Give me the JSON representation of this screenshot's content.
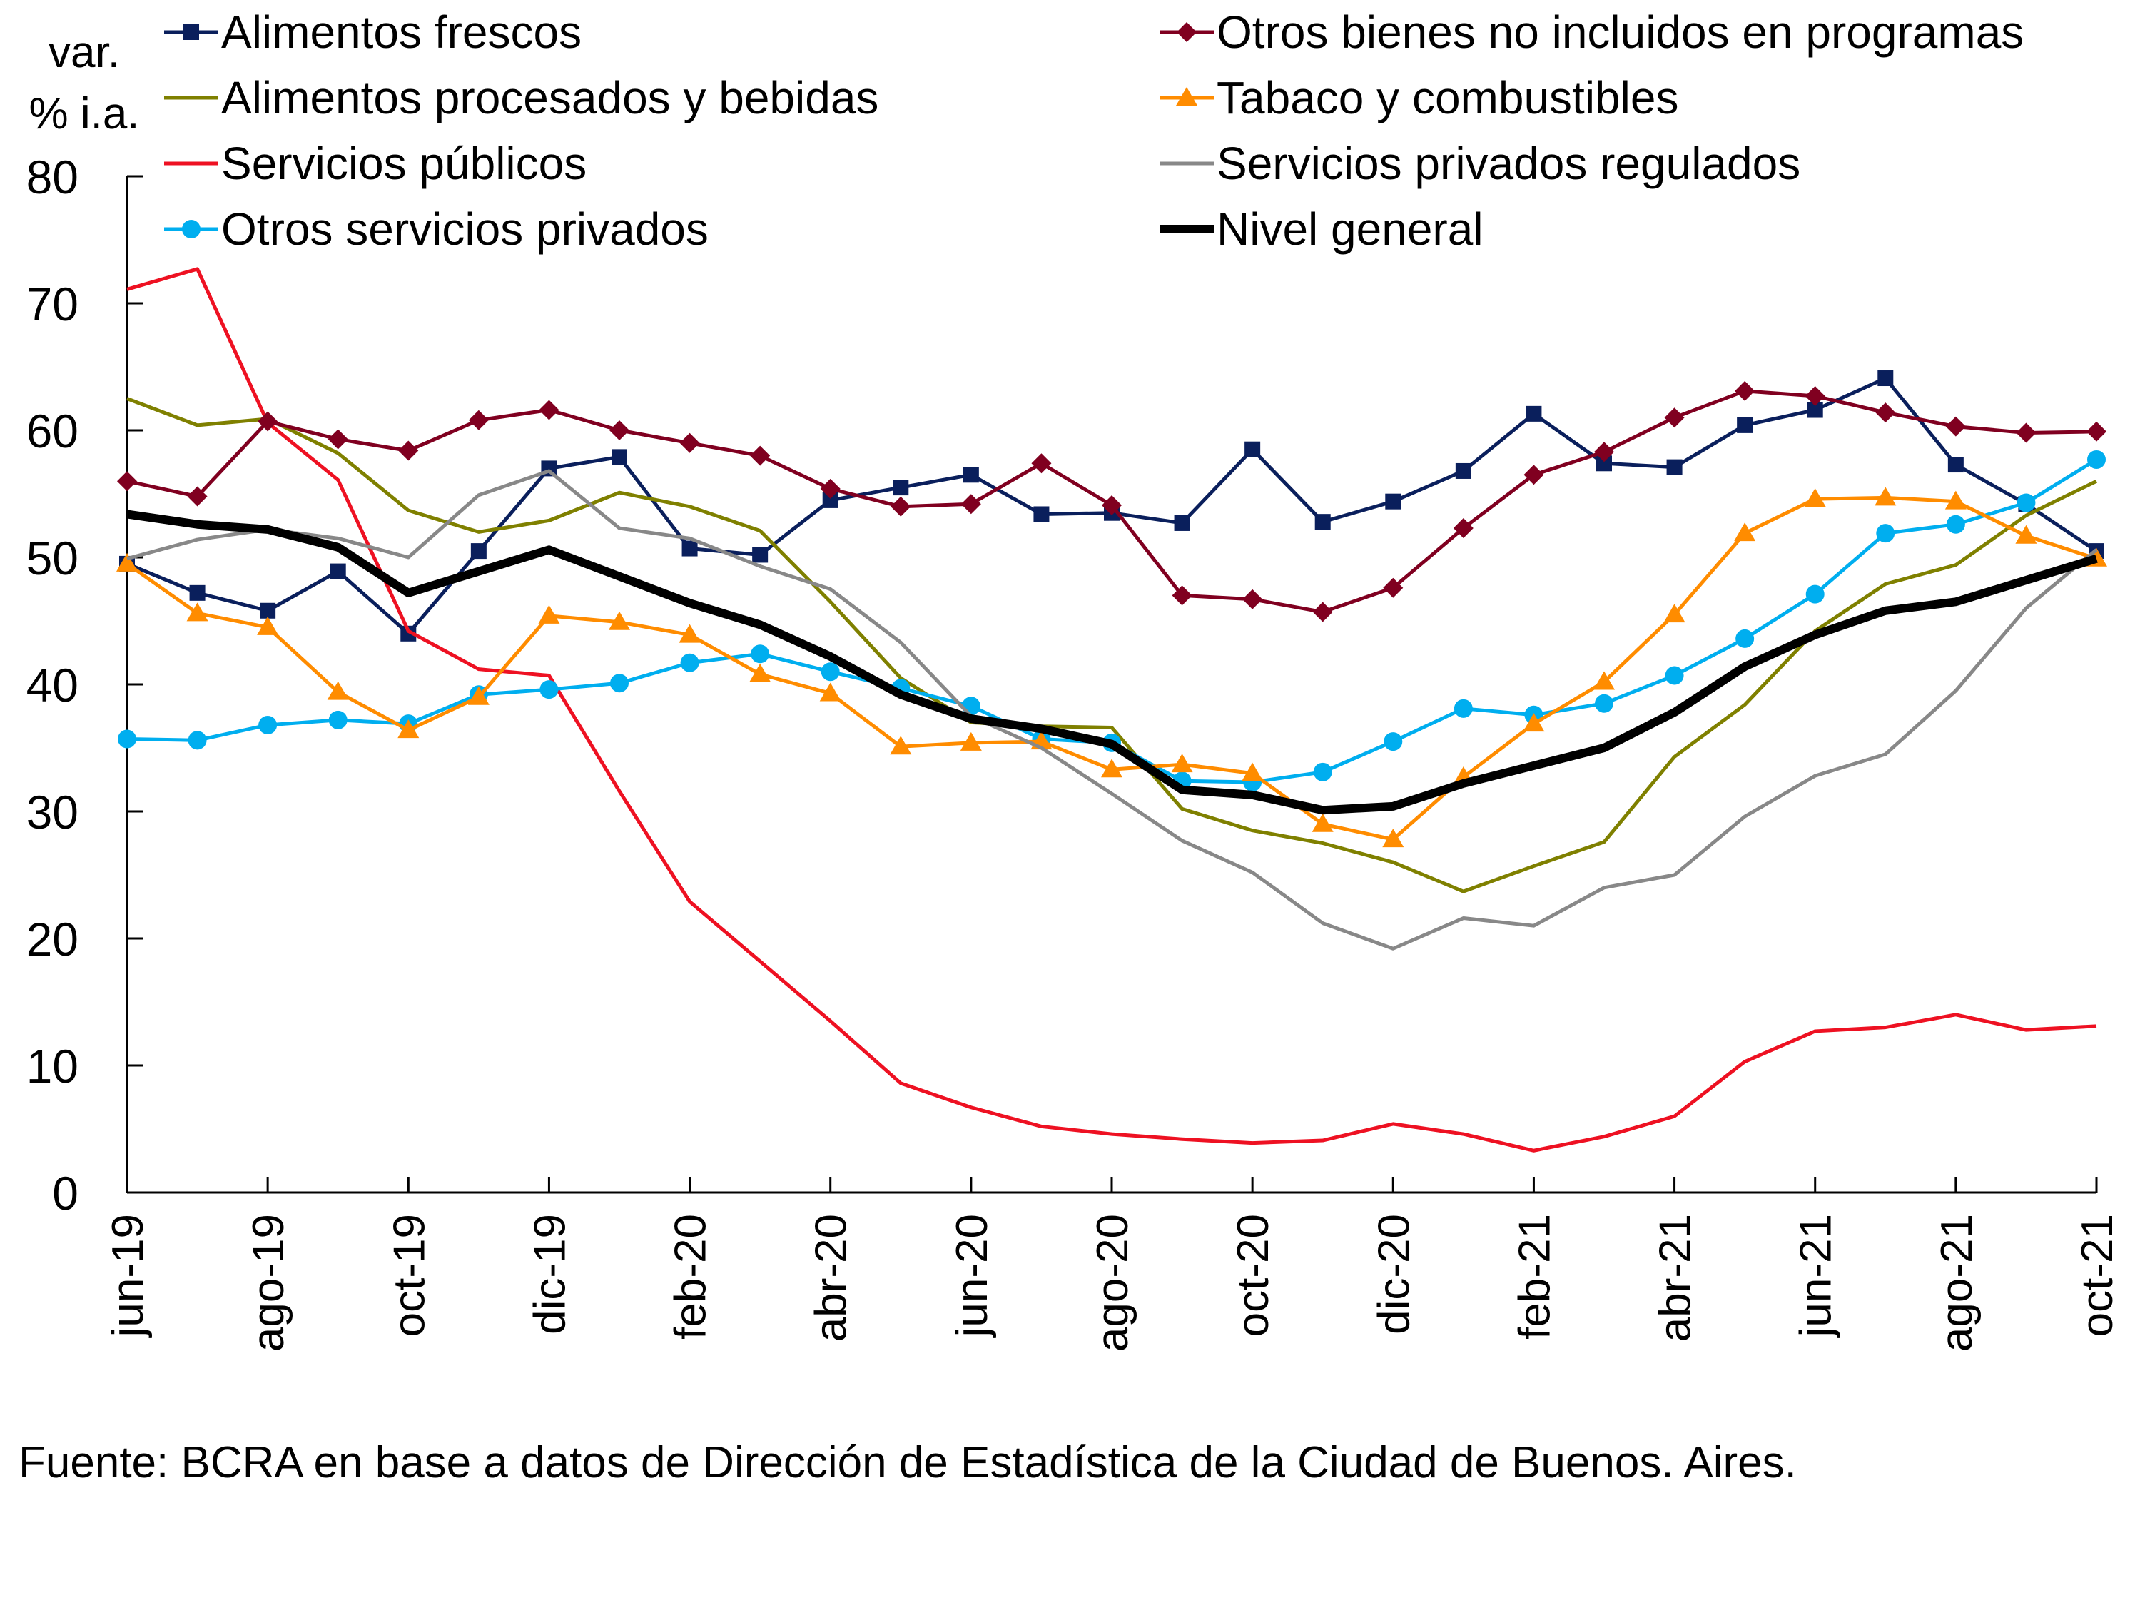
{
  "chart_data": {
    "type": "line",
    "title": "",
    "ylabel_lines": [
      "var.",
      "% i.a."
    ],
    "xlabel": "",
    "ylim": [
      0,
      80
    ],
    "yticks": [
      0,
      10,
      20,
      30,
      40,
      50,
      60,
      70,
      80
    ],
    "grid": false,
    "legend_position": "top",
    "x": [
      "jun-19",
      "jul-19",
      "ago-19",
      "sep-19",
      "oct-19",
      "nov-19",
      "dic-19",
      "ene-20",
      "feb-20",
      "mar-20",
      "abr-20",
      "may-20",
      "jun-20",
      "jul-20",
      "ago-20",
      "sep-20",
      "oct-20",
      "nov-20",
      "dic-20",
      "ene-21",
      "feb-21",
      "mar-21",
      "abr-21",
      "may-21",
      "jun-21",
      "jul-21",
      "ago-21",
      "sep-21",
      "oct-21"
    ],
    "xtick_labels": [
      "jun-19",
      "ago-19",
      "oct-19",
      "dic-19",
      "feb-20",
      "abr-20",
      "jun-20",
      "ago-20",
      "oct-20",
      "dic-20",
      "feb-21",
      "abr-21",
      "jun-21",
      "ago-21",
      "oct-21"
    ],
    "series": [
      {
        "name": "Alimentos frescos",
        "color": "#0a1f5c",
        "marker": "square",
        "width": "thin",
        "values": [
          49.5,
          47.2,
          45.8,
          48.9,
          44.0,
          50.5,
          57.0,
          57.9,
          50.7,
          50.2,
          54.5,
          55.5,
          56.5,
          53.4,
          53.5,
          52.7,
          58.5,
          52.8,
          54.4,
          56.8,
          61.3,
          57.4,
          57.1,
          60.4,
          61.6,
          64.1,
          57.3,
          54.2,
          50.5
        ]
      },
      {
        "name": "Alimentos procesados y bebidas",
        "color": "#7f8000",
        "marker": "none",
        "width": "thin",
        "values": [
          62.5,
          60.4,
          60.9,
          58.2,
          53.7,
          52.0,
          52.9,
          55.1,
          54.0,
          52.1,
          46.5,
          40.5,
          37.0,
          36.7,
          36.6,
          30.2,
          28.5,
          27.5,
          26.0,
          23.7,
          25.7,
          27.6,
          34.3,
          38.4,
          44.2,
          47.9,
          49.4,
          53.3,
          56.0
        ]
      },
      {
        "name": "Servicios públicos",
        "color": "#ee1122",
        "marker": "none",
        "width": "thin",
        "values": [
          71.1,
          72.7,
          60.6,
          56.1,
          44.2,
          41.2,
          40.7,
          31.6,
          22.9,
          18.2,
          13.5,
          8.6,
          6.7,
          5.2,
          4.6,
          4.2,
          3.9,
          4.1,
          5.4,
          4.6,
          3.3,
          4.4,
          6.0,
          10.3,
          12.7,
          13.0,
          14.0,
          12.8,
          13.1
        ]
      },
      {
        "name": "Otros servicios privados",
        "color": "#00aeef",
        "marker": "circle",
        "width": "thin",
        "values": [
          35.7,
          35.6,
          36.8,
          37.2,
          36.9,
          39.2,
          39.6,
          40.1,
          41.7,
          42.4,
          41.0,
          39.7,
          38.3,
          35.7,
          35.4,
          32.4,
          32.3,
          33.1,
          35.5,
          38.1,
          37.6,
          38.5,
          40.7,
          43.6,
          47.1,
          51.9,
          52.6,
          54.3,
          57.7
        ]
      },
      {
        "name": "Otros bienes no incluidos en programas",
        "color": "#800020",
        "marker": "diamond",
        "width": "thin",
        "values": [
          56.0,
          54.8,
          60.7,
          59.3,
          58.4,
          60.8,
          61.6,
          60.0,
          59.0,
          58.0,
          55.4,
          54.0,
          54.2,
          57.4,
          54.1,
          47.0,
          46.7,
          45.7,
          47.6,
          52.3,
          56.5,
          58.3,
          61.0,
          63.1,
          62.7,
          61.4,
          60.3,
          59.8,
          59.9
        ]
      },
      {
        "name": "Tabaco y combustibles",
        "color": "#ff8c00",
        "marker": "triangle",
        "width": "thin",
        "values": [
          49.5,
          45.6,
          44.5,
          39.4,
          36.4,
          39.0,
          45.4,
          44.9,
          43.9,
          40.8,
          39.3,
          35.1,
          35.4,
          35.5,
          33.3,
          33.7,
          33.0,
          29.0,
          27.8,
          32.7,
          36.9,
          40.2,
          45.5,
          51.9,
          54.6,
          54.7,
          54.4,
          51.7,
          49.9
        ]
      },
      {
        "name": "Servicios privados regulados",
        "color": "#888888",
        "marker": "none",
        "width": "thin",
        "values": [
          49.9,
          51.4,
          52.2,
          51.5,
          50.0,
          54.9,
          56.8,
          52.3,
          51.5,
          49.3,
          47.5,
          43.3,
          37.5,
          35.0,
          31.4,
          27.7,
          25.2,
          21.2,
          19.2,
          21.6,
          21.0,
          24.0,
          25.0,
          29.6,
          32.8,
          34.5,
          39.5,
          46.0,
          50.6
        ]
      },
      {
        "name": "Nivel general",
        "color": "#000000",
        "marker": "none",
        "width": "thick",
        "values": [
          53.4,
          52.6,
          52.2,
          50.8,
          47.2,
          48.9,
          50.6,
          48.5,
          46.4,
          44.7,
          42.2,
          39.2,
          37.3,
          36.5,
          35.3,
          31.7,
          31.3,
          30.1,
          30.4,
          32.2,
          33.6,
          35.0,
          37.8,
          41.4,
          43.9,
          45.8,
          46.5,
          48.2,
          49.9
        ]
      }
    ],
    "source_note": "Fuente: BCRA en base a datos de Dirección de Estadística de la Ciudad de Buenos. Aires."
  }
}
